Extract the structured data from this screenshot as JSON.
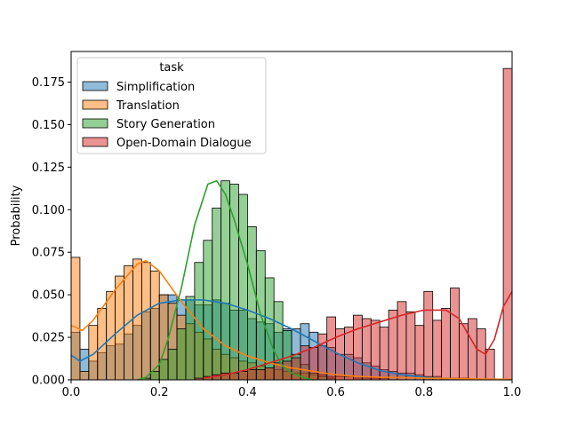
{
  "chart_data": {
    "type": "bar",
    "title": "",
    "xlabel": "",
    "ylabel": "Probability",
    "xlim": [
      0.0,
      1.0
    ],
    "ylim": [
      0.0,
      0.193
    ],
    "bin_width": 0.02,
    "bins_start": 0.0,
    "x_ticks": [
      "0.0",
      "0.2",
      "0.4",
      "0.6",
      "0.8",
      "1.0"
    ],
    "y_ticks": [
      "0.000",
      "0.025",
      "0.050",
      "0.075",
      "0.100",
      "0.125",
      "0.150",
      "0.175"
    ],
    "legend": {
      "title": "task",
      "position": "upper-left"
    },
    "series": [
      {
        "name": "Simplification",
        "color": "#1f77b4",
        "values": [
          0.028,
          0.018,
          0.011,
          0.016,
          0.02,
          0.021,
          0.027,
          0.032,
          0.04,
          0.042,
          0.05,
          0.05,
          0.047,
          0.047,
          0.044,
          0.044,
          0.047,
          0.045,
          0.041,
          0.041,
          0.036,
          0.034,
          0.033,
          0.028,
          0.03,
          0.03,
          0.033,
          0.028,
          0.02,
          0.019,
          0.015,
          0.015,
          0.013,
          0.01,
          0.008,
          0.006,
          0.005,
          0.004,
          0.004,
          0.003,
          0.002,
          0.002,
          0.001,
          0.001,
          0.001,
          0.0,
          0.0,
          0.0,
          0.0,
          0.0
        ],
        "kde": [
          [
            0.0,
            0.0145
          ],
          [
            0.02,
            0.011
          ],
          [
            0.05,
            0.015
          ],
          [
            0.1,
            0.027
          ],
          [
            0.15,
            0.038
          ],
          [
            0.2,
            0.045
          ],
          [
            0.25,
            0.047
          ],
          [
            0.3,
            0.047
          ],
          [
            0.35,
            0.045
          ],
          [
            0.4,
            0.041
          ],
          [
            0.45,
            0.036
          ],
          [
            0.5,
            0.03
          ],
          [
            0.55,
            0.023
          ],
          [
            0.6,
            0.016
          ],
          [
            0.65,
            0.01
          ],
          [
            0.7,
            0.0055
          ],
          [
            0.75,
            0.003
          ],
          [
            0.8,
            0.0015
          ],
          [
            0.85,
            0.0008
          ],
          [
            0.9,
            0.0003
          ],
          [
            1.0,
            0.0001
          ]
        ]
      },
      {
        "name": "Translation",
        "color": "#ff7f0e",
        "values": [
          0.072,
          0.005,
          0.032,
          0.042,
          0.052,
          0.061,
          0.067,
          0.071,
          0.069,
          0.064,
          0.05,
          0.045,
          0.038,
          0.033,
          0.028,
          0.024,
          0.018,
          0.015,
          0.013,
          0.011,
          0.01,
          0.008,
          0.007,
          0.006,
          0.005,
          0.004,
          0.004,
          0.003,
          0.003,
          0.002,
          0.002,
          0.002,
          0.001,
          0.001,
          0.001,
          0.001,
          0.0,
          0.0,
          0.0,
          0.0,
          0.0,
          0.0,
          0.0,
          0.0,
          0.0,
          0.0,
          0.0,
          0.0,
          0.0,
          0.0
        ],
        "kde": [
          [
            0.0,
            0.032
          ],
          [
            0.01,
            0.031
          ],
          [
            0.025,
            0.029
          ],
          [
            0.05,
            0.035
          ],
          [
            0.1,
            0.053
          ],
          [
            0.15,
            0.068
          ],
          [
            0.17,
            0.07
          ],
          [
            0.2,
            0.064
          ],
          [
            0.25,
            0.046
          ],
          [
            0.3,
            0.03
          ],
          [
            0.35,
            0.02
          ],
          [
            0.4,
            0.014
          ],
          [
            0.45,
            0.01
          ],
          [
            0.5,
            0.007
          ],
          [
            0.55,
            0.005
          ],
          [
            0.6,
            0.003
          ],
          [
            0.65,
            0.002
          ],
          [
            0.7,
            0.0015
          ],
          [
            0.8,
            0.001
          ],
          [
            1.0,
            0.0003
          ]
        ]
      },
      {
        "name": "Story Generation",
        "color": "#2ca02c",
        "values": [
          0.0,
          0.0,
          0.0,
          0.0,
          0.0,
          0.0,
          0.0,
          0.0,
          0.001,
          0.005,
          0.012,
          0.018,
          0.03,
          0.049,
          0.069,
          0.082,
          0.101,
          0.117,
          0.115,
          0.109,
          0.09,
          0.076,
          0.06,
          0.046,
          0.029,
          0.015,
          0.009,
          0.004,
          0.002,
          0.001,
          0.0,
          0.0,
          0.0,
          0.0,
          0.0,
          0.0,
          0.0,
          0.0,
          0.0,
          0.0,
          0.0,
          0.0,
          0.0,
          0.0,
          0.0,
          0.0,
          0.0,
          0.0,
          0.0,
          0.0
        ],
        "kde": [
          [
            0.15,
            0.0
          ],
          [
            0.17,
            0.0015
          ],
          [
            0.2,
            0.009
          ],
          [
            0.22,
            0.024
          ],
          [
            0.25,
            0.054
          ],
          [
            0.28,
            0.091
          ],
          [
            0.31,
            0.115
          ],
          [
            0.33,
            0.117
          ],
          [
            0.35,
            0.109
          ],
          [
            0.37,
            0.094
          ],
          [
            0.4,
            0.068
          ],
          [
            0.43,
            0.038
          ],
          [
            0.46,
            0.017
          ],
          [
            0.48,
            0.008
          ],
          [
            0.5,
            0.004
          ],
          [
            0.53,
            0.001
          ],
          [
            0.55,
            0.0
          ]
        ]
      },
      {
        "name": "Open-Domain Dialogue",
        "color": "#d62728",
        "values": [
          0.0,
          0.0,
          0.0,
          0.0,
          0.0,
          0.0,
          0.0,
          0.0,
          0.0,
          0.0,
          0.0,
          0.0,
          0.0,
          0.0,
          0.001,
          0.002,
          0.003,
          0.004,
          0.004,
          0.005,
          0.006,
          0.006,
          0.007,
          0.01,
          0.011,
          0.013,
          0.02,
          0.019,
          0.027,
          0.037,
          0.03,
          0.031,
          0.038,
          0.036,
          0.035,
          0.031,
          0.041,
          0.046,
          0.04,
          0.032,
          0.052,
          0.035,
          0.042,
          0.054,
          0.033,
          0.036,
          0.03,
          0.018,
          0.0,
          0.183
        ],
        "kde": [
          [
            0.3,
            0.001
          ],
          [
            0.35,
            0.003
          ],
          [
            0.4,
            0.006
          ],
          [
            0.45,
            0.01
          ],
          [
            0.5,
            0.014
          ],
          [
            0.55,
            0.019
          ],
          [
            0.6,
            0.025
          ],
          [
            0.65,
            0.03
          ],
          [
            0.7,
            0.034
          ],
          [
            0.75,
            0.038
          ],
          [
            0.8,
            0.041
          ],
          [
            0.85,
            0.041
          ],
          [
            0.88,
            0.036
          ],
          [
            0.9,
            0.027
          ],
          [
            0.92,
            0.018
          ],
          [
            0.94,
            0.015
          ],
          [
            0.96,
            0.024
          ],
          [
            0.98,
            0.043
          ],
          [
            1.0,
            0.052
          ]
        ]
      }
    ]
  }
}
